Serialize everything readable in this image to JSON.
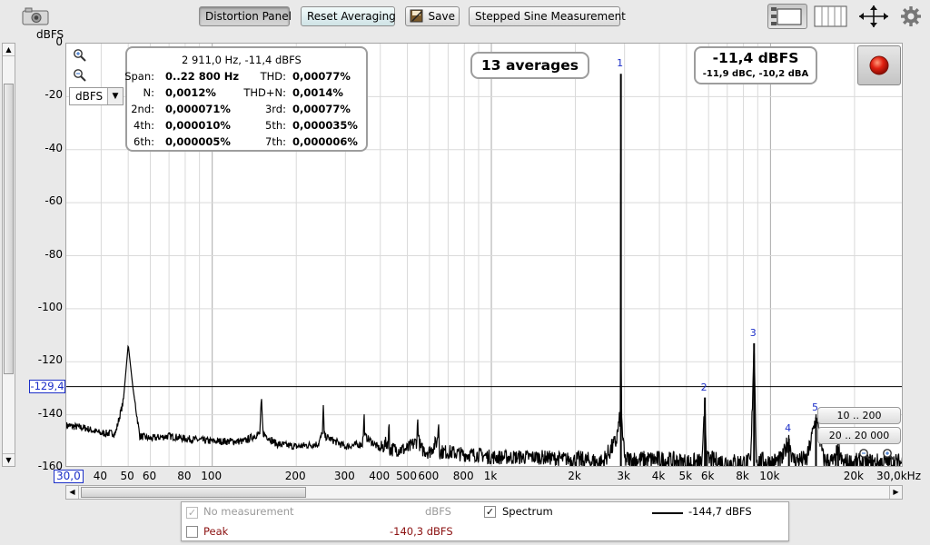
{
  "toolbar": {
    "distortion_panel": "Distortion Panel",
    "reset_averaging": "Reset Averaging",
    "save": "Save",
    "stepped_sine": "Stepped Sine Measurement"
  },
  "plot": {
    "y_unit": "dBFS",
    "unit_select": "dBFS",
    "y_ticks": [
      "0",
      "-20",
      "-40",
      "-60",
      "-80",
      "-100",
      "-120",
      "-140",
      "-160"
    ],
    "x_ticks": [
      "30,0",
      "40",
      "50",
      "60",
      "80",
      "100",
      "200",
      "300",
      "400",
      "500",
      "600",
      "800",
      "1k",
      "2k",
      "3k",
      "4k",
      "5k",
      "6k",
      "8k",
      "10k",
      "20k",
      "30,0kHz"
    ],
    "cursor_level": "-129,4"
  },
  "stats": {
    "peak_readout": "2 911,0 Hz, -11,4 dBFS",
    "span_label": "Span:",
    "span_value": "0..22 800 Hz",
    "thd_label": "THD:",
    "thd_value": "0,00077%",
    "n_label": "N:",
    "n_value": "0,0012%",
    "thdn_label": "THD+N:",
    "thdn_value": "0,0014%",
    "h2_label": "2nd:",
    "h2_value": "0,000071%",
    "h3_label": "3rd:",
    "h3_value": "0,00077%",
    "h4_label": "4th:",
    "h4_value": "0,000010%",
    "h5_label": "5th:",
    "h5_value": "0,000035%",
    "h6_label": "6th:",
    "h6_value": "0,000005%",
    "h7_label": "7th:",
    "h7_value": "0,000006%"
  },
  "averages": "13 averages",
  "level": {
    "main": "-11,4 dBFS",
    "weighted": "-11,9 dBC, -10,2 dBA"
  },
  "harmonic_labels": [
    "1",
    "2",
    "3",
    "4",
    "5",
    "6"
  ],
  "zoom_buttons": {
    "z1": "10 .. 200",
    "z2": "20 .. 20 000"
  },
  "legend": {
    "no_measurement": "No measurement",
    "no_measurement_unit": "dBFS",
    "spectrum": "Spectrum",
    "spectrum_value": "-144,7 dBFS",
    "peak": "Peak",
    "peak_value": "-140,3 dBFS"
  },
  "colors": {
    "harmonic_label": "#1c2fc8",
    "peak_text": "#8b1010",
    "record": "#e02010"
  },
  "chart_data": {
    "type": "line",
    "title": "",
    "xlabel": "",
    "ylabel": "dBFS",
    "x_scale": "log",
    "xlim": [
      30,
      30000
    ],
    "ylim": [
      -160,
      0
    ],
    "grid": true,
    "series": [
      {
        "name": "Spectrum",
        "x": [
          30,
          35,
          40,
          45,
          48,
          50,
          52,
          55,
          60,
          70,
          80,
          100,
          130,
          148,
          150,
          152,
          170,
          200,
          240,
          248,
          250,
          252,
          300,
          345,
          348,
          350,
          352,
          400,
          428,
          430,
          432,
          500,
          540,
          545,
          550,
          560,
          600,
          640,
          648,
          650,
          652,
          700,
          800,
          900,
          1000,
          1200,
          1500,
          2000,
          2500,
          2800,
          2900,
          2911,
          2920,
          3000,
          3500,
          4000,
          5000,
          5700,
          5822,
          5900,
          7000,
          8500,
          8733,
          8900,
          10000,
          11000,
          11644,
          12000,
          13500,
          14555,
          15500,
          17000,
          17466,
          18000,
          20000,
          25000,
          30000
        ],
        "y": [
          -144,
          -145,
          -147,
          -147,
          -135,
          -113.5,
          -130,
          -148,
          -149,
          -148,
          -149,
          -150,
          -150,
          -147,
          -134,
          -147,
          -151,
          -152,
          -151,
          -147,
          -137,
          -148,
          -152,
          -151,
          -147,
          -139.5,
          -148,
          -153,
          -150,
          -141,
          -153,
          -153,
          -150,
          -142,
          -150,
          -153,
          -154,
          -150,
          -142,
          -150,
          -154,
          -154,
          -155,
          -155,
          -156,
          -156,
          -156,
          -157,
          -158,
          -150,
          -140,
          -11.4,
          -140,
          -157,
          -157,
          -157,
          -158,
          -158,
          -133.5,
          -157,
          -158,
          -158,
          -113,
          -157,
          -158,
          -157,
          -149,
          -157,
          -157,
          -141,
          -157,
          -158,
          -152,
          -158,
          -158,
          -158,
          -158
        ]
      }
    ],
    "harmonics": [
      {
        "label": "1",
        "freq": 2911,
        "level": -11.4
      },
      {
        "label": "2",
        "freq": 5822,
        "level": -133.5
      },
      {
        "label": "3",
        "freq": 8733,
        "level": -113
      },
      {
        "label": "4",
        "freq": 11644,
        "level": -149
      },
      {
        "label": "5",
        "freq": 14555,
        "level": -141
      },
      {
        "label": "6",
        "freq": 17466,
        "level": -152
      }
    ],
    "cursor_y": -129.4
  }
}
